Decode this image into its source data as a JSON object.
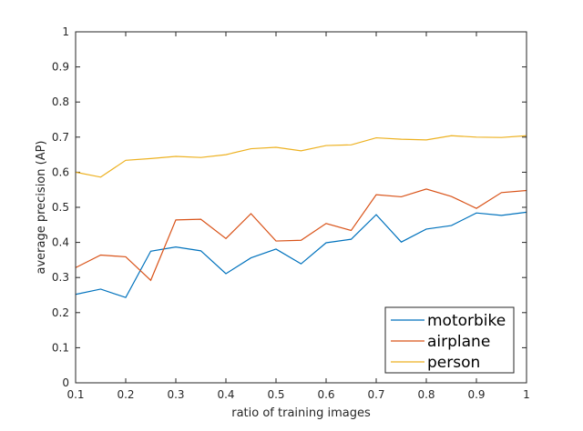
{
  "chart_data": {
    "type": "line",
    "xlabel": "ratio of training images",
    "ylabel": "average precision (AP)",
    "xlim": [
      0.1,
      1
    ],
    "ylim": [
      0,
      1
    ],
    "xticks": [
      0.1,
      0.2,
      0.3,
      0.4,
      0.5,
      0.6,
      0.7,
      0.8,
      0.9,
      1
    ],
    "xtick_labels": [
      "0.1",
      "0.2",
      "0.3",
      "0.4",
      "0.5",
      "0.6",
      "0.7",
      "0.8",
      "0.9",
      "1"
    ],
    "yticks": [
      0,
      0.1,
      0.2,
      0.3,
      0.4,
      0.5,
      0.6,
      0.7,
      0.8,
      0.9,
      1
    ],
    "ytick_labels": [
      "0",
      "0.1",
      "0.2",
      "0.3",
      "0.4",
      "0.5",
      "0.6",
      "0.7",
      "0.8",
      "0.9",
      "1"
    ],
    "grid": false,
    "legend_position": "bottom-right",
    "x": [
      0.1,
      0.15,
      0.2,
      0.25,
      0.3,
      0.35,
      0.4,
      0.45,
      0.5,
      0.55,
      0.6,
      0.65,
      0.7,
      0.75,
      0.8,
      0.85,
      0.9,
      0.95,
      1.0
    ],
    "series": [
      {
        "name": "motorbike",
        "color": "#0072bd",
        "values": [
          0.252,
          0.267,
          0.243,
          0.375,
          0.387,
          0.376,
          0.311,
          0.356,
          0.381,
          0.339,
          0.399,
          0.409,
          0.479,
          0.401,
          0.438,
          0.448,
          0.484,
          0.477,
          0.486
        ]
      },
      {
        "name": "airplane",
        "color": "#d95319",
        "values": [
          0.328,
          0.364,
          0.359,
          0.292,
          0.464,
          0.466,
          0.411,
          0.482,
          0.404,
          0.406,
          0.454,
          0.434,
          0.536,
          0.53,
          0.552,
          0.531,
          0.497,
          0.542,
          0.548
        ]
      },
      {
        "name": "person",
        "color": "#edb120",
        "values": [
          0.6,
          0.586,
          0.634,
          0.639,
          0.645,
          0.642,
          0.65,
          0.667,
          0.671,
          0.661,
          0.676,
          0.678,
          0.698,
          0.694,
          0.692,
          0.704,
          0.7,
          0.699,
          0.704
        ]
      }
    ]
  }
}
